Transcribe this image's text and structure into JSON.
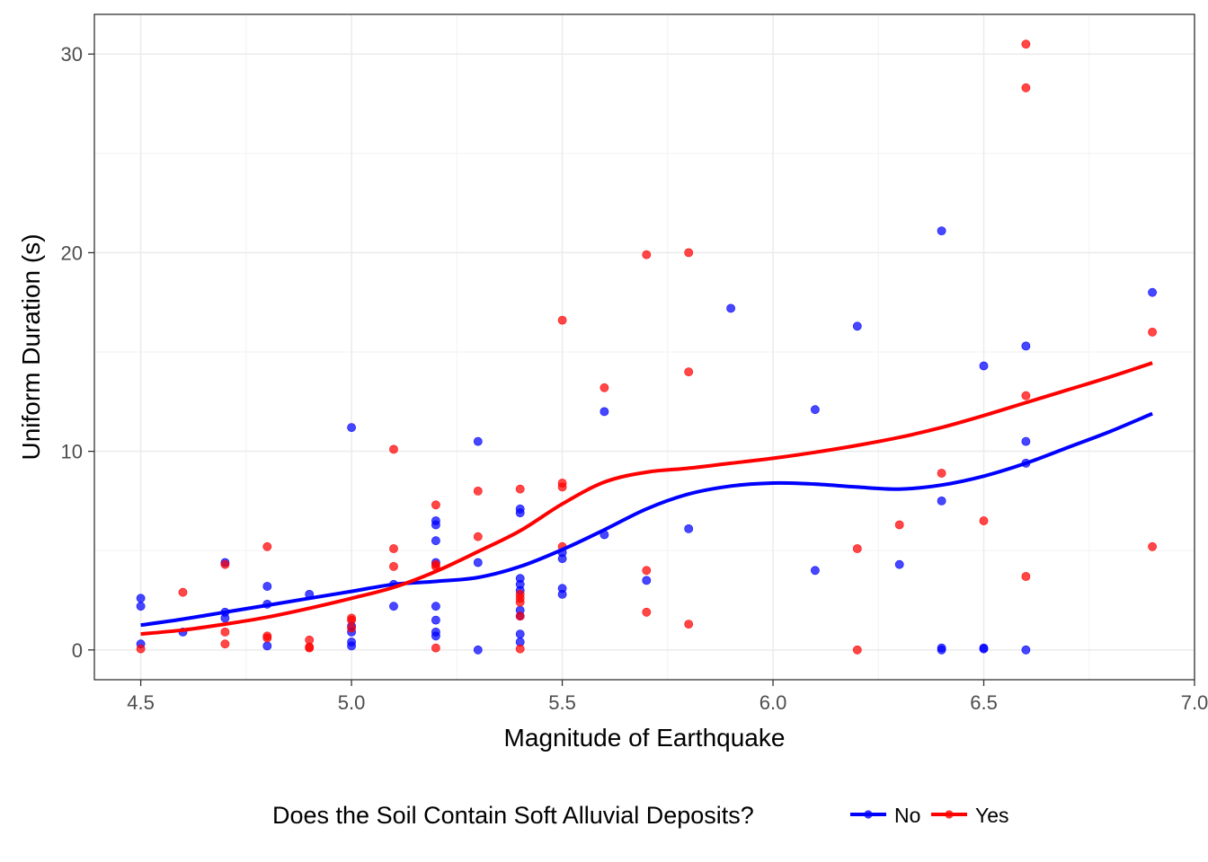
{
  "chart_data": {
    "type": "scatter",
    "title": "",
    "xlabel": "Magnitude of Earthquake",
    "ylabel": "Uniform Duration (s)",
    "xlim": [
      4.39,
      7.0
    ],
    "ylim": [
      -1.5,
      32
    ],
    "x_ticks": [
      "4.5",
      "5.0",
      "5.5",
      "6.0",
      "6.5",
      "7.0"
    ],
    "y_ticks": [
      "0",
      "10",
      "20",
      "30"
    ],
    "grid": true,
    "legend": {
      "title": "Does the Soil Contain Soft Alluvial Deposits?",
      "position": "bottom",
      "entries": [
        "No",
        "Yes"
      ]
    },
    "series": [
      {
        "name": "No",
        "color": "#0000ff",
        "points": [
          [
            4.5,
            2.6
          ],
          [
            4.5,
            2.2
          ],
          [
            4.5,
            0.3
          ],
          [
            4.6,
            0.9
          ],
          [
            4.7,
            4.4
          ],
          [
            4.7,
            1.9
          ],
          [
            4.7,
            1.6
          ],
          [
            4.8,
            3.2
          ],
          [
            4.8,
            2.3
          ],
          [
            4.8,
            0.2
          ],
          [
            4.9,
            2.8
          ],
          [
            5.0,
            11.2
          ],
          [
            5.0,
            1.2
          ],
          [
            5.0,
            0.9
          ],
          [
            5.0,
            0.4
          ],
          [
            5.0,
            0.2
          ],
          [
            5.1,
            3.3
          ],
          [
            5.1,
            2.2
          ],
          [
            5.2,
            6.5
          ],
          [
            5.2,
            6.3
          ],
          [
            5.2,
            5.5
          ],
          [
            5.2,
            4.4
          ],
          [
            5.2,
            2.2
          ],
          [
            5.2,
            1.5
          ],
          [
            5.2,
            0.9
          ],
          [
            5.2,
            0.7
          ],
          [
            5.3,
            10.5
          ],
          [
            5.3,
            4.4
          ],
          [
            5.3,
            0.0
          ],
          [
            5.4,
            7.1
          ],
          [
            5.4,
            6.9
          ],
          [
            5.4,
            3.6
          ],
          [
            5.4,
            3.3
          ],
          [
            5.4,
            3.0
          ],
          [
            5.4,
            2.0
          ],
          [
            5.4,
            1.7
          ],
          [
            5.4,
            0.8
          ],
          [
            5.4,
            0.4
          ],
          [
            5.5,
            4.9
          ],
          [
            5.5,
            4.6
          ],
          [
            5.5,
            3.1
          ],
          [
            5.5,
            2.8
          ],
          [
            5.6,
            12.0
          ],
          [
            5.6,
            5.8
          ],
          [
            5.7,
            3.5
          ],
          [
            5.8,
            6.1
          ],
          [
            5.9,
            17.2
          ],
          [
            6.1,
            12.1
          ],
          [
            6.1,
            4.0
          ],
          [
            6.2,
            16.3
          ],
          [
            6.3,
            4.3
          ],
          [
            6.4,
            21.1
          ],
          [
            6.4,
            7.5
          ],
          [
            6.4,
            0.1
          ],
          [
            6.4,
            0.0
          ],
          [
            6.5,
            14.3
          ],
          [
            6.5,
            0.1
          ],
          [
            6.5,
            0.05
          ],
          [
            6.6,
            15.3
          ],
          [
            6.6,
            10.5
          ],
          [
            6.6,
            9.4
          ],
          [
            6.6,
            0.0
          ],
          [
            6.9,
            18.0
          ]
        ],
        "smooth": [
          [
            4.5,
            1.25
          ],
          [
            4.6,
            1.55
          ],
          [
            4.7,
            1.9
          ],
          [
            4.8,
            2.25
          ],
          [
            4.9,
            2.6
          ],
          [
            5.0,
            2.95
          ],
          [
            5.1,
            3.3
          ],
          [
            5.2,
            3.45
          ],
          [
            5.3,
            3.65
          ],
          [
            5.4,
            4.2
          ],
          [
            5.5,
            5.05
          ],
          [
            5.6,
            6.05
          ],
          [
            5.7,
            7.1
          ],
          [
            5.8,
            7.85
          ],
          [
            5.9,
            8.25
          ],
          [
            6.0,
            8.4
          ],
          [
            6.1,
            8.35
          ],
          [
            6.2,
            8.2
          ],
          [
            6.3,
            8.1
          ],
          [
            6.4,
            8.3
          ],
          [
            6.5,
            8.75
          ],
          [
            6.6,
            9.4
          ],
          [
            6.7,
            10.2
          ],
          [
            6.8,
            11.0
          ],
          [
            6.9,
            11.9
          ]
        ]
      },
      {
        "name": "Yes",
        "color": "#ff0000",
        "points": [
          [
            4.5,
            0.05
          ],
          [
            4.6,
            2.9
          ],
          [
            4.7,
            4.3
          ],
          [
            4.7,
            0.9
          ],
          [
            4.7,
            0.3
          ],
          [
            4.8,
            5.2
          ],
          [
            4.8,
            0.7
          ],
          [
            4.8,
            0.6
          ],
          [
            4.9,
            0.5
          ],
          [
            4.9,
            0.1
          ],
          [
            4.9,
            0.15
          ],
          [
            5.0,
            1.6
          ],
          [
            5.0,
            1.5
          ],
          [
            5.0,
            1.1
          ],
          [
            5.1,
            10.1
          ],
          [
            5.1,
            5.1
          ],
          [
            5.1,
            4.2
          ],
          [
            5.2,
            7.3
          ],
          [
            5.2,
            4.3
          ],
          [
            5.2,
            4.2
          ],
          [
            5.2,
            0.1
          ],
          [
            5.3,
            8.0
          ],
          [
            5.3,
            5.7
          ],
          [
            5.4,
            8.1
          ],
          [
            5.4,
            2.8
          ],
          [
            5.4,
            2.6
          ],
          [
            5.4,
            2.4
          ],
          [
            5.4,
            1.7
          ],
          [
            5.4,
            0.05
          ],
          [
            5.5,
            16.6
          ],
          [
            5.5,
            8.4
          ],
          [
            5.5,
            8.2
          ],
          [
            5.5,
            5.2
          ],
          [
            5.6,
            13.2
          ],
          [
            5.7,
            19.9
          ],
          [
            5.7,
            4.0
          ],
          [
            5.7,
            1.9
          ],
          [
            5.8,
            20.0
          ],
          [
            5.8,
            14.0
          ],
          [
            5.8,
            1.3
          ],
          [
            6.2,
            5.1
          ],
          [
            6.2,
            0.0
          ],
          [
            6.3,
            6.3
          ],
          [
            6.4,
            8.9
          ],
          [
            6.5,
            6.5
          ],
          [
            6.6,
            30.5
          ],
          [
            6.6,
            28.3
          ],
          [
            6.6,
            12.8
          ],
          [
            6.6,
            3.7
          ],
          [
            6.9,
            16.0
          ],
          [
            6.9,
            5.2
          ]
        ],
        "smooth": [
          [
            4.5,
            0.8
          ],
          [
            4.6,
            1.0
          ],
          [
            4.7,
            1.3
          ],
          [
            4.8,
            1.65
          ],
          [
            4.9,
            2.1
          ],
          [
            5.0,
            2.6
          ],
          [
            5.1,
            3.15
          ],
          [
            5.2,
            3.95
          ],
          [
            5.3,
            4.95
          ],
          [
            5.4,
            6.0
          ],
          [
            5.5,
            7.35
          ],
          [
            5.6,
            8.45
          ],
          [
            5.7,
            8.95
          ],
          [
            5.8,
            9.15
          ],
          [
            5.9,
            9.4
          ],
          [
            6.0,
            9.65
          ],
          [
            6.1,
            9.95
          ],
          [
            6.2,
            10.3
          ],
          [
            6.3,
            10.7
          ],
          [
            6.4,
            11.2
          ],
          [
            6.5,
            11.8
          ],
          [
            6.6,
            12.45
          ],
          [
            6.7,
            13.1
          ],
          [
            6.8,
            13.75
          ],
          [
            6.9,
            14.45
          ]
        ]
      }
    ]
  }
}
